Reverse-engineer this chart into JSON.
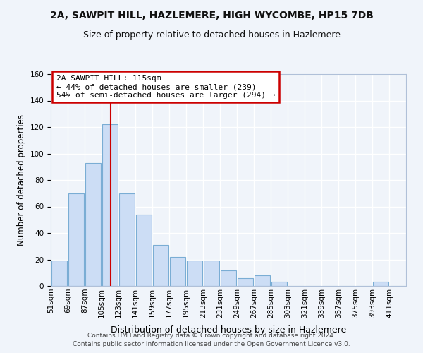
{
  "title": "2A, SAWPIT HILL, HAZLEMERE, HIGH WYCOMBE, HP15 7DB",
  "subtitle": "Size of property relative to detached houses in Hazlemere",
  "xlabel": "Distribution of detached houses by size in Hazlemere",
  "ylabel": "Number of detached properties",
  "bar_color": "#ccddf5",
  "bar_edge_color": "#7aadd4",
  "categories": [
    "51sqm",
    "69sqm",
    "87sqm",
    "105sqm",
    "123sqm",
    "141sqm",
    "159sqm",
    "177sqm",
    "195sqm",
    "213sqm",
    "231sqm",
    "249sqm",
    "267sqm",
    "285sqm",
    "303sqm",
    "321sqm",
    "339sqm",
    "357sqm",
    "375sqm",
    "393sqm",
    "411sqm"
  ],
  "values": [
    19,
    70,
    93,
    122,
    70,
    54,
    31,
    22,
    19,
    19,
    12,
    6,
    8,
    3,
    0,
    0,
    0,
    0,
    0,
    3,
    0
  ],
  "ylim": [
    0,
    160
  ],
  "yticks": [
    0,
    20,
    40,
    60,
    80,
    100,
    120,
    140,
    160
  ],
  "annotation_text": "2A SAWPIT HILL: 115sqm\n← 44% of detached houses are smaller (239)\n54% of semi-detached houses are larger (294) →",
  "annotation_box_color": "#ffffff",
  "annotation_box_edge_color": "#cc0000",
  "vline_color": "#cc0000",
  "footer_line1": "Contains HM Land Registry data © Crown copyright and database right 2024.",
  "footer_line2": "Contains public sector information licensed under the Open Government Licence v3.0.",
  "background_color": "#f0f4fa",
  "grid_color": "#ffffff",
  "title_fontsize": 10,
  "subtitle_fontsize": 9,
  "tick_fontsize": 7.5,
  "ylabel_fontsize": 8.5,
  "xlabel_fontsize": 9,
  "footer_fontsize": 6.5,
  "bin_width": 18
}
